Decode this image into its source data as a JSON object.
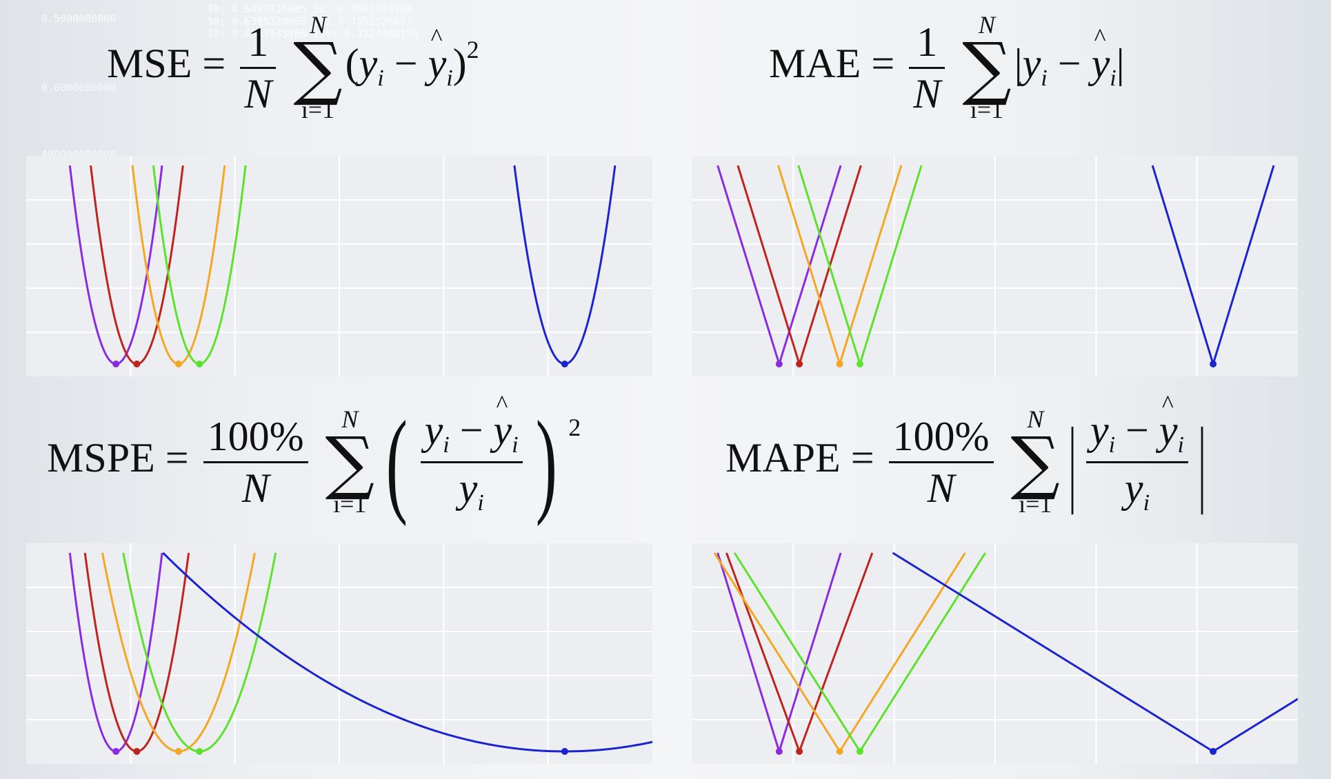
{
  "background_overlay": [
    "0.5000000000",
    "30: 0.6497716085   30: 0.4882849788",
    "30: 0.6395330068   15: 0.4552526897",
    "30: 0.4537543986   150: 0.3724488195",
    "0.0000000000",
    "400000000000"
  ],
  "formulas": {
    "mse": {
      "name": "MSE",
      "eq": "=",
      "num": "1",
      "den": "N",
      "sum_top": "N",
      "sum_bottom": "i=1",
      "body_open": "(",
      "y": "y",
      "minus": "−",
      "yhat": "y",
      "i": "i",
      "body_close": ")",
      "power": "2"
    },
    "mae": {
      "name": "MAE",
      "eq": "=",
      "num": "1",
      "den": "N",
      "sum_top": "N",
      "sum_bottom": "i=1",
      "bar": "|",
      "y": "y",
      "minus": "−",
      "yhat": "y",
      "i": "i"
    },
    "mspe": {
      "name": "MSPE",
      "eq": "=",
      "num": "100%",
      "den": "N",
      "sum_top": "N",
      "sum_bottom": "i=1",
      "paren_open": "(",
      "paren_close": ")",
      "y": "y",
      "minus": "−",
      "yhat": "y",
      "y_den": "y",
      "i": "i",
      "power": "2"
    },
    "mape": {
      "name": "MAPE",
      "eq": "=",
      "num": "100%",
      "den": "N",
      "sum_top": "N",
      "sum_bottom": "i=1",
      "bar": "|",
      "y": "y",
      "minus": "−",
      "yhat": "y",
      "y_den": "y",
      "i": "i"
    }
  },
  "chart_data": [
    {
      "type": "line",
      "id": "mse",
      "xlim": [
        0,
        30
      ],
      "ylim": [
        0,
        1
      ],
      "grid": true,
      "series": [
        {
          "color": "#8a2be2",
          "form": "quad",
          "center": 4.3,
          "k": 0.205,
          "min": 0
        },
        {
          "color": "#c0221c",
          "form": "quad",
          "center": 5.3,
          "k": 0.205,
          "min": 0
        },
        {
          "color": "#f5a623",
          "form": "quad",
          "center": 7.3,
          "k": 0.205,
          "min": 0
        },
        {
          "color": "#5be22a",
          "form": "quad",
          "center": 8.3,
          "k": 0.205,
          "min": 0
        },
        {
          "color": "#1a23d0",
          "form": "quad",
          "center": 25.8,
          "k": 0.172,
          "min": 0
        }
      ]
    },
    {
      "type": "line",
      "id": "mae",
      "xlim": [
        0,
        30
      ],
      "ylim": [
        0,
        1
      ],
      "grid": true,
      "series": [
        {
          "color": "#8a2be2",
          "form": "abs",
          "center": 4.3,
          "k": 0.328,
          "min": 0
        },
        {
          "color": "#c0221c",
          "form": "abs",
          "center": 5.3,
          "k": 0.328,
          "min": 0
        },
        {
          "color": "#f5a623",
          "form": "abs",
          "center": 7.3,
          "k": 0.328,
          "min": 0
        },
        {
          "color": "#5be22a",
          "form": "abs",
          "center": 8.3,
          "k": 0.328,
          "min": 0
        },
        {
          "color": "#1a23d0",
          "form": "abs",
          "center": 25.8,
          "k": 0.333,
          "min": 0
        }
      ]
    },
    {
      "type": "line",
      "id": "mspe",
      "xlim": [
        0,
        30
      ],
      "ylim": [
        0,
        1
      ],
      "grid": true,
      "series": [
        {
          "color": "#8a2be2",
          "form": "quad",
          "center": 4.3,
          "k": 0.205,
          "min": 0
        },
        {
          "color": "#c0221c",
          "form": "quad",
          "center": 5.3,
          "k": 0.162,
          "min": 0
        },
        {
          "color": "#f5a623",
          "form": "quad",
          "center": 7.3,
          "k": 0.075,
          "min": 0
        },
        {
          "color": "#5be22a",
          "form": "quad",
          "center": 8.3,
          "k": 0.075,
          "min": 0
        },
        {
          "color": "#1a23d0",
          "form": "quad",
          "center": 25.8,
          "k": 0.0027,
          "min": 0
        }
      ]
    },
    {
      "type": "line",
      "id": "mape",
      "xlim": [
        0,
        30
      ],
      "ylim": [
        0,
        1
      ],
      "grid": true,
      "series": [
        {
          "color": "#8a2be2",
          "form": "abs",
          "center": 4.3,
          "k": 0.328,
          "min": 0
        },
        {
          "color": "#c0221c",
          "form": "abs",
          "center": 5.3,
          "k": 0.277,
          "min": 0
        },
        {
          "color": "#f5a623",
          "form": "abs",
          "center": 7.3,
          "k": 0.161,
          "min": 0
        },
        {
          "color": "#5be22a",
          "form": "abs",
          "center": 8.3,
          "k": 0.161,
          "min": 0
        },
        {
          "color": "#1a23d0",
          "form": "abs",
          "center": 25.8,
          "k": 0.063,
          "min": 0
        }
      ]
    }
  ]
}
